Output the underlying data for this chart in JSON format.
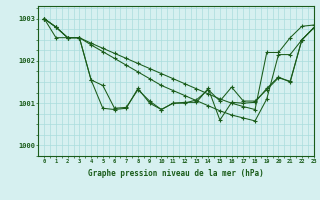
{
  "title": "Graphe pression niveau de la mer (hPa)",
  "bg_color": "#d6f0f0",
  "line_color": "#1a5c1a",
  "grid_color": "#aadddd",
  "xlim": [
    -0.5,
    23
  ],
  "ylim": [
    999.75,
    1003.3
  ],
  "yticks": [
    1000,
    1001,
    1002,
    1003
  ],
  "xticks": [
    0,
    1,
    2,
    3,
    4,
    5,
    6,
    7,
    8,
    9,
    10,
    11,
    12,
    13,
    14,
    15,
    16,
    17,
    18,
    19,
    20,
    21,
    22,
    23
  ],
  "line1": [
    1003.0,
    1002.8,
    1002.55,
    1002.55,
    1002.42,
    1002.3,
    1002.18,
    1002.06,
    1001.94,
    1001.82,
    1001.7,
    1001.58,
    1001.46,
    1001.34,
    1001.22,
    1001.1,
    1001.0,
    1000.92,
    1000.85,
    1002.2,
    1002.2,
    1002.55,
    1002.82,
    1002.85
  ],
  "line2": [
    1003.0,
    1002.55,
    1002.55,
    1002.55,
    1002.38,
    1002.22,
    1002.06,
    1001.9,
    1001.74,
    1001.58,
    1001.42,
    1001.3,
    1001.18,
    1001.06,
    1000.94,
    1000.82,
    1000.72,
    1000.65,
    1000.58,
    1001.1,
    1002.15,
    1002.15,
    1002.5,
    1002.78
  ],
  "line3": [
    1003.0,
    1002.8,
    1002.55,
    1002.55,
    1001.55,
    1001.42,
    1000.88,
    1000.9,
    1001.32,
    1001.05,
    1000.85,
    1001.0,
    1001.0,
    1001.08,
    1001.32,
    1001.05,
    1001.38,
    1001.05,
    1001.05,
    1001.32,
    1001.6,
    1001.52,
    1002.5,
    1002.78
  ],
  "line4": [
    1003.0,
    1002.8,
    1002.55,
    1002.55,
    1001.55,
    1000.88,
    1000.85,
    1000.88,
    1001.35,
    1001.0,
    1000.85,
    1001.0,
    1001.02,
    1001.02,
    1001.35,
    1000.6,
    1001.02,
    1001.0,
    1001.02,
    1001.35,
    1001.62,
    1001.5,
    1002.5,
    1002.78
  ]
}
